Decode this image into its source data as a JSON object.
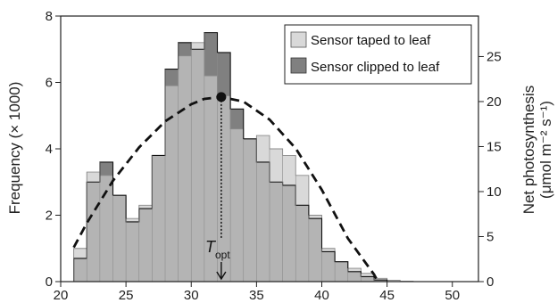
{
  "chart_data": {
    "type": "bar",
    "x_ticks": [
      20,
      25,
      30,
      35,
      40,
      45,
      50
    ],
    "x_range": [
      20,
      52
    ],
    "bin_width": 1,
    "bin_starts": [
      21,
      22,
      23,
      24,
      25,
      26,
      27,
      28,
      29,
      30,
      31,
      32,
      33,
      34,
      35,
      36,
      37,
      38,
      39,
      40,
      41,
      42,
      43,
      44,
      45,
      46
    ],
    "y_left": {
      "label": "Frequency (× 1000)",
      "ticks": [
        0,
        2,
        4,
        6,
        8
      ],
      "range": [
        0,
        8
      ]
    },
    "y_right": {
      "label_line1": "Net photosynthesis",
      "label_line2": "(μmol m⁻² s⁻¹)",
      "ticks": [
        0,
        5,
        10,
        15,
        20,
        25
      ],
      "range": [
        0,
        29.5
      ]
    },
    "series": [
      {
        "name": "Sensor taped to leaf",
        "color": "#d9d9d9",
        "values": [
          1.0,
          3.3,
          3.2,
          2.6,
          1.9,
          2.3,
          3.8,
          5.9,
          6.8,
          7.2,
          6.2,
          5.6,
          4.6,
          4.3,
          4.4,
          4.0,
          3.8,
          3.2,
          2.0,
          1.0,
          0.6,
          0.4,
          0.25,
          0.1,
          0.04,
          0.01
        ]
      },
      {
        "name": "Sensor clipped to leaf",
        "color": "#808080",
        "values": [
          0.7,
          3.0,
          3.6,
          2.6,
          1.8,
          2.2,
          3.8,
          6.4,
          7.2,
          7.0,
          7.5,
          6.9,
          5.2,
          4.3,
          3.6,
          3.0,
          2.9,
          2.3,
          1.9,
          0.9,
          0.6,
          0.3,
          0.15,
          0.05,
          0.0,
          0.0
        ]
      }
    ],
    "curve": {
      "label": "Net photosynthesis",
      "x": [
        21,
        22,
        24,
        26,
        28,
        30,
        31,
        32.3,
        34,
        36,
        38,
        40,
        42,
        44,
        44.3
      ],
      "y": [
        3.8,
        6.5,
        11.2,
        14.9,
        17.8,
        19.7,
        20.3,
        20.5,
        20.0,
        18.0,
        14.8,
        10.2,
        4.8,
        0.8,
        0.0
      ]
    },
    "t_opt": {
      "label": "T",
      "subscript": "opt",
      "x": 32.3,
      "y": 20.5
    },
    "legend_position": "top-right"
  }
}
